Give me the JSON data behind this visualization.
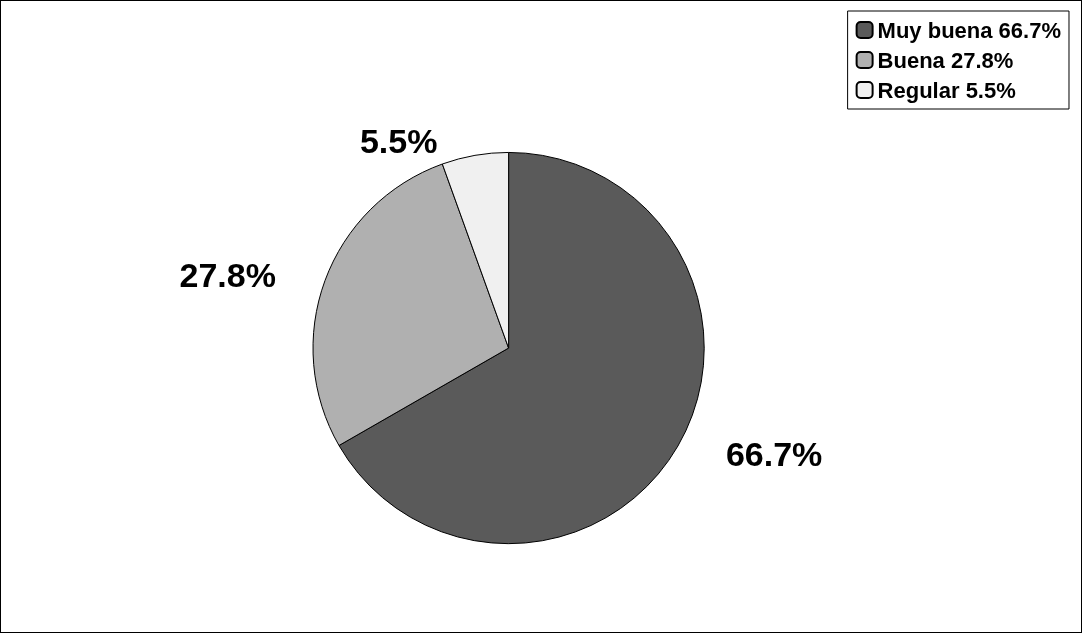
{
  "chart_data": {
    "type": "pie",
    "categories": [
      "Muy buena 66.7%",
      "Buena 27.8%",
      "Regular 5.5%"
    ],
    "values": [
      66.7,
      27.8,
      5.5
    ],
    "colors": [
      "#5a5a5a",
      "#b0b0b0",
      "#f0f0f0"
    ],
    "value_labels": [
      "66.7%",
      "27.8%",
      "5.5%"
    ],
    "legend": "top right"
  }
}
